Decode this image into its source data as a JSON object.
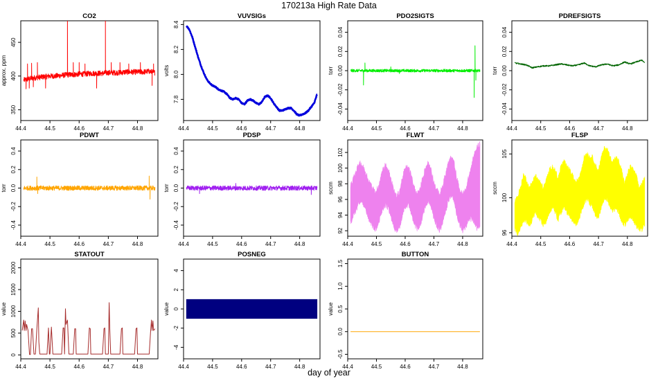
{
  "title": "170213a   High Rate Data",
  "xlabel": "day of year",
  "chart_data": [
    {
      "id": "co2",
      "type": "line",
      "title": "CO2",
      "ylabel": "approx. ppm",
      "color": "#ff0000",
      "xlim": [
        44.4,
        44.87
      ],
      "ylim": [
        334,
        482
      ],
      "xticks": [
        44.4,
        44.5,
        44.6,
        44.7,
        44.8
      ],
      "yticks": [
        350,
        400,
        450
      ],
      "x": [
        44.41,
        44.42,
        44.44,
        44.46,
        44.48,
        44.5,
        44.52,
        44.54,
        44.56,
        44.58,
        44.6,
        44.62,
        44.64,
        44.66,
        44.68,
        44.7,
        44.72,
        44.74,
        44.76,
        44.78,
        44.8,
        44.82,
        44.84,
        44.86
      ],
      "y": [
        394,
        395,
        397,
        398,
        399,
        400,
        400,
        401,
        402,
        402,
        403,
        403,
        404,
        404,
        404,
        405,
        405,
        405,
        406,
        406,
        406,
        406,
        407,
        405
      ],
      "noise": 4,
      "spikes": [
        [
          44.418,
          381
        ],
        [
          44.423,
          418
        ],
        [
          44.429,
          382
        ],
        [
          44.437,
          419
        ],
        [
          44.443,
          384
        ],
        [
          44.457,
          420
        ],
        [
          44.485,
          382
        ],
        [
          44.56,
          482
        ],
        [
          44.58,
          420
        ],
        [
          44.6,
          420
        ],
        [
          44.62,
          418
        ],
        [
          44.66,
          382
        ],
        [
          44.69,
          482
        ],
        [
          44.71,
          420
        ],
        [
          44.74,
          420
        ],
        [
          44.77,
          418
        ],
        [
          44.81,
          420
        ],
        [
          44.85,
          386
        ],
        [
          44.855,
          418
        ]
      ]
    },
    {
      "id": "vuvsigs",
      "type": "line",
      "title": "VUVSIGs",
      "ylabel": "volts",
      "color": "#0000dd",
      "xlim": [
        44.4,
        44.87
      ],
      "ylim": [
        7.63,
        8.43
      ],
      "xticks": [
        44.4,
        44.5,
        44.6,
        44.7,
        44.8
      ],
      "yticks": [
        7.8,
        8.0,
        8.2,
        8.4
      ],
      "x": [
        44.41,
        44.42,
        44.43,
        44.44,
        44.45,
        44.46,
        44.47,
        44.48,
        44.49,
        44.5,
        44.51,
        44.52,
        44.53,
        44.54,
        44.55,
        44.56,
        44.57,
        44.58,
        44.59,
        44.6,
        44.61,
        44.62,
        44.63,
        44.64,
        44.65,
        44.66,
        44.67,
        44.68,
        44.69,
        44.7,
        44.71,
        44.72,
        44.73,
        44.74,
        44.75,
        44.76,
        44.77,
        44.78,
        44.79,
        44.8,
        44.81,
        44.82,
        44.83,
        44.84,
        44.85,
        44.86
      ],
      "y": [
        8.39,
        8.36,
        8.3,
        8.22,
        8.14,
        8.07,
        8.01,
        7.96,
        7.93,
        7.91,
        7.9,
        7.88,
        7.87,
        7.86,
        7.84,
        7.81,
        7.8,
        7.81,
        7.8,
        7.77,
        7.76,
        7.79,
        7.8,
        7.79,
        7.77,
        7.76,
        7.78,
        7.82,
        7.83,
        7.81,
        7.77,
        7.74,
        7.71,
        7.71,
        7.72,
        7.73,
        7.73,
        7.71,
        7.68,
        7.67,
        7.68,
        7.69,
        7.71,
        7.74,
        7.77,
        7.84
      ],
      "noise": 0.005,
      "linewidth": 2.6
    },
    {
      "id": "pdo2sigts",
      "type": "line",
      "title": "PDO2SIGTS",
      "ylabel": "torr",
      "color": "#00ee00",
      "xlim": [
        44.4,
        44.87
      ],
      "ylim": [
        -0.052,
        0.052
      ],
      "xticks": [
        44.4,
        44.5,
        44.6,
        44.7,
        44.8
      ],
      "yticks": [
        -0.04,
        -0.02,
        0.0,
        0.02,
        0.04
      ],
      "x": [
        44.41,
        44.86
      ],
      "y": [
        0.0,
        0.0
      ],
      "noise": 0.0015,
      "spikes": [
        [
          44.455,
          -0.015
        ],
        [
          44.46,
          0.008
        ],
        [
          44.55,
          0.004
        ],
        [
          44.58,
          -0.003
        ],
        [
          44.84,
          -0.028
        ],
        [
          44.843,
          0.026
        ],
        [
          44.846,
          -0.01
        ]
      ]
    },
    {
      "id": "pdrefsigts",
      "type": "line",
      "title": "PDREFSIGTS",
      "ylabel": "torr",
      "color": "#006400",
      "xlim": [
        44.4,
        44.87
      ],
      "ylim": [
        -0.052,
        0.052
      ],
      "xticks": [
        44.4,
        44.5,
        44.6,
        44.7,
        44.8
      ],
      "yticks": [
        -0.04,
        -0.02,
        0.0,
        0.02,
        0.04
      ],
      "x": [
        44.41,
        44.43,
        44.45,
        44.47,
        44.49,
        44.51,
        44.53,
        44.55,
        44.57,
        44.59,
        44.61,
        44.63,
        44.65,
        44.67,
        44.69,
        44.71,
        44.73,
        44.75,
        44.77,
        44.79,
        44.81,
        44.83,
        44.85,
        44.86
      ],
      "y": [
        0.008,
        0.007,
        0.006,
        0.003,
        0.004,
        0.005,
        0.005,
        0.006,
        0.007,
        0.006,
        0.005,
        0.006,
        0.008,
        0.005,
        0.004,
        0.006,
        0.007,
        0.005,
        0.006,
        0.009,
        0.007,
        0.009,
        0.011,
        0.008
      ],
      "noise": 0.0007
    },
    {
      "id": "pdwt",
      "type": "line",
      "title": "PDWT",
      "ylabel": "torr",
      "color": "#ffa500",
      "xlim": [
        44.4,
        44.87
      ],
      "ylim": [
        -0.52,
        0.52
      ],
      "xticks": [
        44.4,
        44.5,
        44.6,
        44.7,
        44.8
      ],
      "yticks": [
        -0.4,
        -0.2,
        0.0,
        0.2,
        0.4
      ],
      "x": [
        44.41,
        44.86
      ],
      "y": [
        0.0,
        0.0
      ],
      "noise": 0.025,
      "spikes": [
        [
          44.455,
          0.12
        ],
        [
          44.458,
          -0.06
        ],
        [
          44.84,
          0.13
        ],
        [
          44.843,
          -0.12
        ]
      ]
    },
    {
      "id": "pdsp",
      "type": "line",
      "title": "PDSP",
      "ylabel": "torr",
      "color": "#a020f0",
      "xlim": [
        44.4,
        44.87
      ],
      "ylim": [
        -0.52,
        0.52
      ],
      "xticks": [
        44.4,
        44.5,
        44.6,
        44.7,
        44.8
      ],
      "yticks": [
        -0.4,
        -0.2,
        0.0,
        0.2,
        0.4
      ],
      "x": [
        44.41,
        44.86
      ],
      "y": [
        0.0,
        0.0
      ],
      "noise": 0.025,
      "spikes": [
        [
          44.455,
          -0.06
        ],
        [
          44.58,
          0.05
        ],
        [
          44.84,
          -0.07
        ]
      ]
    },
    {
      "id": "flwt",
      "type": "area",
      "title": "FLWT",
      "ylabel": "sccm",
      "color": "#ee82ee",
      "xlim": [
        44.4,
        44.87
      ],
      "ylim": [
        91.3,
        103.6
      ],
      "xticks": [
        44.4,
        44.5,
        44.6,
        44.7,
        44.8
      ],
      "yticks": [
        92,
        94,
        96,
        98,
        100,
        102
      ],
      "x": [
        44.41,
        44.42,
        44.43,
        44.44,
        44.45,
        44.46,
        44.47,
        44.48,
        44.49,
        44.5,
        44.51,
        44.52,
        44.53,
        44.54,
        44.55,
        44.56,
        44.57,
        44.58,
        44.59,
        44.6,
        44.61,
        44.62,
        44.63,
        44.64,
        44.65,
        44.66,
        44.67,
        44.68,
        44.69,
        44.7,
        44.71,
        44.72,
        44.73,
        44.74,
        44.75,
        44.76,
        44.77,
        44.78,
        44.79,
        44.8,
        44.81,
        44.82,
        44.83,
        44.84,
        44.85,
        44.86
      ],
      "upper": [
        97.5,
        98.5,
        99.5,
        100.5,
        100.2,
        99.5,
        98.5,
        97.8,
        97.0,
        96.8,
        98.0,
        99.5,
        100.2,
        99.8,
        98.5,
        97.0,
        96.2,
        96.8,
        98.5,
        99.8,
        100.0,
        99.0,
        97.5,
        96.5,
        96.8,
        98.5,
        99.8,
        100.5,
        99.8,
        98.0,
        97.0,
        96.5,
        97.5,
        99.0,
        100.5,
        101.2,
        100.5,
        98.5,
        97.0,
        96.5,
        97.0,
        98.5,
        100.0,
        101.5,
        102.5,
        103.0
      ],
      "lower": [
        93.0,
        94.0,
        95.0,
        95.8,
        95.8,
        95.0,
        94.0,
        93.2,
        92.5,
        92.3,
        93.5,
        94.8,
        95.5,
        95.2,
        94.0,
        92.6,
        92.2,
        92.6,
        94.0,
        95.3,
        95.5,
        94.6,
        93.2,
        92.4,
        92.5,
        94.0,
        95.3,
        96.0,
        95.5,
        93.8,
        92.8,
        92.2,
        93.0,
        94.5,
        96.0,
        96.8,
        96.2,
        94.2,
        92.8,
        92.2,
        92.5,
        93.5,
        93.8,
        93.2,
        92.5,
        93.0
      ],
      "noise": 0.8
    },
    {
      "id": "flsp",
      "type": "area",
      "title": "FLSP",
      "ylabel": "sccm",
      "color": "#ffff00",
      "xlim": [
        44.4,
        44.87
      ],
      "ylim": [
        95.6,
        106.6
      ],
      "xticks": [
        44.4,
        44.5,
        44.6,
        44.7,
        44.8
      ],
      "yticks": [
        96,
        100,
        105
      ],
      "x": [
        44.41,
        44.42,
        44.43,
        44.44,
        44.45,
        44.46,
        44.47,
        44.48,
        44.49,
        44.5,
        44.51,
        44.52,
        44.53,
        44.54,
        44.55,
        44.56,
        44.57,
        44.58,
        44.59,
        44.6,
        44.61,
        44.62,
        44.63,
        44.64,
        44.65,
        44.66,
        44.67,
        44.68,
        44.69,
        44.7,
        44.71,
        44.72,
        44.73,
        44.74,
        44.75,
        44.76,
        44.77,
        44.78,
        44.79,
        44.8,
        44.81,
        44.82,
        44.83,
        44.84,
        44.85,
        44.86
      ],
      "upper": [
        99.5,
        100.0,
        101.0,
        102.5,
        102.0,
        101.0,
        101.5,
        102.5,
        102.0,
        101.5,
        101.0,
        102.0,
        103.0,
        103.5,
        103.0,
        102.0,
        103.5,
        104.0,
        103.5,
        103.0,
        102.5,
        101.5,
        102.0,
        103.0,
        104.5,
        105.0,
        104.5,
        104.5,
        103.5,
        103.0,
        104.5,
        105.5,
        105.5,
        104.5,
        104.0,
        104.5,
        104.0,
        103.0,
        101.5,
        102.5,
        103.5,
        103.0,
        102.5,
        101.0,
        101.5,
        102.0
      ],
      "lower": [
        96.5,
        96.0,
        96.5,
        97.5,
        97.5,
        97.0,
        97.5,
        98.5,
        98.0,
        97.5,
        97.0,
        97.5,
        98.5,
        99.0,
        98.5,
        97.5,
        98.5,
        99.0,
        98.5,
        98.0,
        97.5,
        97.0,
        97.5,
        98.5,
        99.5,
        100.0,
        99.5,
        99.0,
        98.0,
        98.0,
        99.0,
        100.0,
        100.0,
        99.0,
        98.5,
        99.0,
        98.5,
        97.5,
        97.0,
        97.5,
        98.0,
        97.5,
        97.0,
        96.5,
        96.5,
        97.0
      ],
      "noise": 0.6
    },
    {
      "id": "statout",
      "type": "line",
      "title": "STATOUT",
      "ylabel": "value",
      "color": "#a52a2a",
      "xlim": [
        44.4,
        44.87
      ],
      "ylim": [
        -90,
        2200
      ],
      "xticks": [
        44.4,
        44.5,
        44.6,
        44.7,
        44.8
      ],
      "yticks": [
        0,
        500,
        1000,
        1500,
        2000
      ],
      "x": [
        44.405,
        44.41,
        44.412,
        44.415,
        44.418,
        44.42,
        44.425,
        44.43,
        44.433,
        44.437,
        44.44,
        44.445,
        44.45,
        44.455,
        44.46,
        44.462,
        44.465,
        44.467,
        44.47,
        44.48,
        44.49,
        44.495,
        44.498,
        44.5,
        44.505,
        44.51,
        44.52,
        44.53,
        44.54,
        44.545,
        44.548,
        44.55,
        44.553,
        44.555,
        44.56,
        44.565,
        44.57,
        44.575,
        44.58,
        44.585,
        44.588,
        44.59,
        44.595,
        44.598,
        44.6,
        44.61,
        44.62,
        44.63,
        44.635,
        44.638,
        44.64,
        44.643,
        44.645,
        44.65,
        44.66,
        44.67,
        44.68,
        44.685,
        44.688,
        44.69,
        44.695,
        44.7,
        44.703,
        44.705,
        44.708,
        44.71,
        44.72,
        44.73,
        44.74,
        44.745,
        44.748,
        44.75,
        44.753,
        44.755,
        44.76,
        44.77,
        44.78,
        44.79,
        44.795,
        44.798,
        44.8,
        44.803,
        44.805,
        44.81,
        44.82,
        44.83,
        44.84,
        44.845,
        44.848,
        44.85,
        44.853,
        44.855,
        44.86
      ],
      "y": [
        560,
        800,
        560,
        780,
        560,
        700,
        560,
        10,
        10,
        600,
        600,
        20,
        20,
        600,
        1080,
        300,
        20,
        20,
        20,
        20,
        20,
        620,
        20,
        20,
        640,
        20,
        20,
        20,
        20,
        620,
        620,
        20,
        1060,
        700,
        800,
        20,
        20,
        20,
        20,
        600,
        600,
        20,
        20,
        20,
        20,
        20,
        20,
        20,
        620,
        600,
        20,
        20,
        20,
        20,
        20,
        20,
        20,
        600,
        620,
        20,
        20,
        20,
        1200,
        600,
        20,
        20,
        20,
        20,
        20,
        600,
        620,
        20,
        20,
        20,
        20,
        20,
        20,
        20,
        600,
        620,
        20,
        20,
        20,
        20,
        20,
        20,
        20,
        560,
        800,
        560,
        780,
        560,
        600
      ]
    },
    {
      "id": "posneg",
      "type": "area",
      "title": "POSNEG",
      "ylabel": "value",
      "color": "#000080",
      "xlim": [
        44.4,
        44.87
      ],
      "ylim": [
        -5.2,
        5.2
      ],
      "xticks": [
        44.4,
        44.5,
        44.6,
        44.7,
        44.8
      ],
      "yticks": [
        -4,
        -2,
        0,
        2,
        4
      ],
      "x": [
        44.41,
        44.86
      ],
      "upper": [
        1,
        1
      ],
      "lower": [
        -1,
        -1
      ],
      "noise": 0
    },
    {
      "id": "button",
      "type": "line",
      "title": "BUTTON",
      "ylabel": "value",
      "color": "#ffa500",
      "xlim": [
        44.4,
        44.87
      ],
      "ylim": [
        -0.6,
        1.6
      ],
      "xticks": [
        44.4,
        44.5,
        44.6,
        44.7,
        44.8
      ],
      "yticks": [
        -0.5,
        0.0,
        0.5,
        1.0,
        1.5
      ],
      "x": [
        44.41,
        44.86
      ],
      "y": [
        0,
        0
      ]
    }
  ]
}
